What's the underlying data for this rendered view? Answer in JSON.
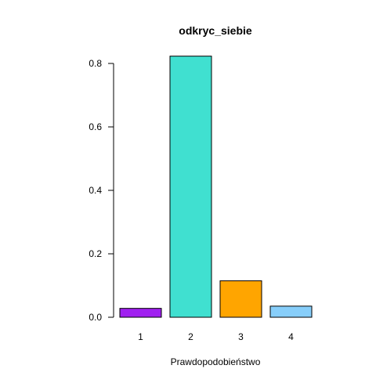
{
  "chart_data": {
    "type": "bar",
    "title": "odkryc_siebie",
    "xlabel": "Prawdopodobieństwo",
    "ylabel": "",
    "categories": [
      "1",
      "2",
      "3",
      "4"
    ],
    "values": [
      0.028,
      0.823,
      0.115,
      0.035
    ],
    "colors": [
      "#a020f0",
      "#40e0d0",
      "#ffa500",
      "#87cefa"
    ],
    "ylim": [
      0,
      0.8
    ],
    "yticks": [
      0.0,
      0.2,
      0.4,
      0.6,
      0.8
    ],
    "ytick_labels": [
      "0.0",
      "0.2",
      "0.4",
      "0.6",
      "0.8"
    ],
    "grid": false,
    "legend": "none"
  }
}
